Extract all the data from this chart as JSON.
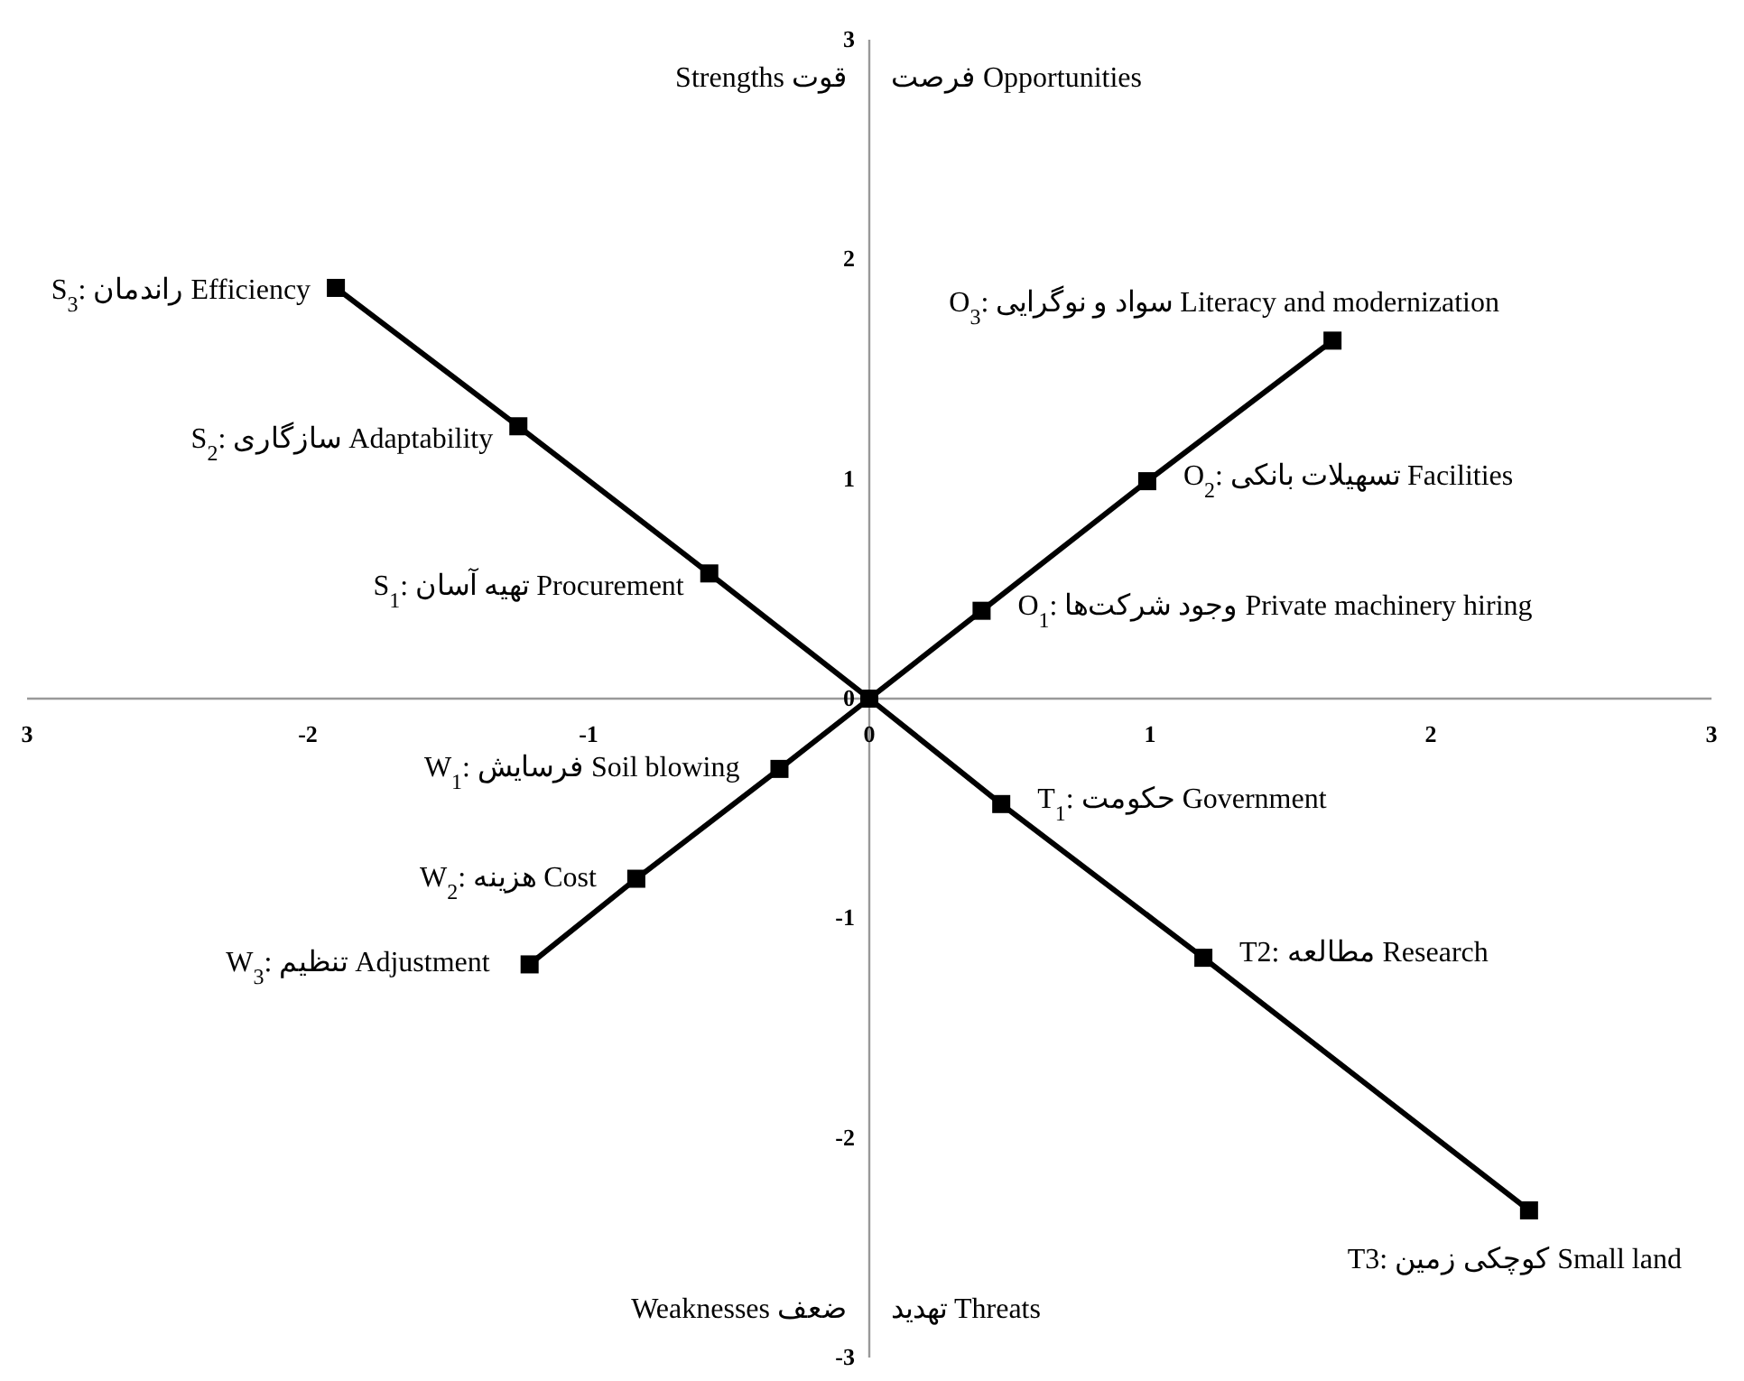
{
  "chart_data": {
    "type": "line",
    "xlim": [
      -3,
      3
    ],
    "ylim": [
      -3,
      3
    ],
    "xticks": [
      {
        "value": -3,
        "label": "3"
      },
      -2,
      -1,
      0,
      1,
      2,
      3
    ],
    "yticks": [
      -3,
      -2,
      -1,
      0,
      1,
      2,
      3
    ],
    "marker": "square",
    "line_style": "solid",
    "series": [
      {
        "color": "#000000",
        "x": [
          0,
          -0.57,
          -1.25,
          -1.9
        ],
        "values": [
          0,
          0.57,
          1.24,
          1.87
        ]
      },
      {
        "color": "#000000",
        "x": [
          0,
          0.4,
          0.99,
          1.65
        ],
        "values": [
          0,
          0.4,
          0.99,
          1.63
        ]
      },
      {
        "color": "#000000",
        "x": [
          0,
          -0.32,
          -0.83,
          -1.21
        ],
        "values": [
          0,
          -0.32,
          -0.82,
          -1.21
        ]
      },
      {
        "color": "#000000",
        "x": [
          0,
          0.47,
          1.19,
          2.35
        ],
        "values": [
          0,
          -0.48,
          -1.18,
          -2.33
        ]
      }
    ],
    "annotations": [
      "Strengths قوت",
      "فرصت Opportunities",
      "Weaknesses ضعف",
      "تهدید Threats",
      {
        "text": "S$_{1}$: تهیه آسان Procurement",
        "x": -0.57,
        "y": 0.57
      },
      {
        "text": "S$_{2}$: سازگاری Adaptability",
        "x": -1.25,
        "y": 1.24
      },
      {
        "text": "S$_{3}$: راندمان Efficiency",
        "x": -1.9,
        "y": 1.87
      },
      {
        "text": "O$_{1}$: وجود شرکت‌ها Private machinery hiring",
        "x": 0.4,
        "y": 0.4
      },
      {
        "text": "O$_{2}$: تسهیلات بانکی  Facilities",
        "x": 0.99,
        "y": 0.99
      },
      {
        "text": "O$_{3}$: سواد و نوگرایی Literacy and modernization",
        "x": 1.65,
        "y": 1.63
      },
      {
        "text": "W$_{1}$: فرسایش Soil blowing",
        "x": -0.32,
        "y": -0.32
      },
      {
        "text": "W$_{2}$: هزینه Cost",
        "x": -0.83,
        "y": -0.82
      },
      {
        "text": "W$_{3}$: تنظیم Adjustment",
        "x": -1.21,
        "y": -1.21
      },
      {
        "text": "T$_{1}$: حکومت Government",
        "x": 0.47,
        "y": -0.48
      },
      {
        "text": "T2: مطالعه Research",
        "x": 1.19,
        "y": -1.18
      },
      {
        "text": "T3: کوچکی زمین Small land",
        "x": 2.35,
        "y": -2.33
      }
    ]
  }
}
